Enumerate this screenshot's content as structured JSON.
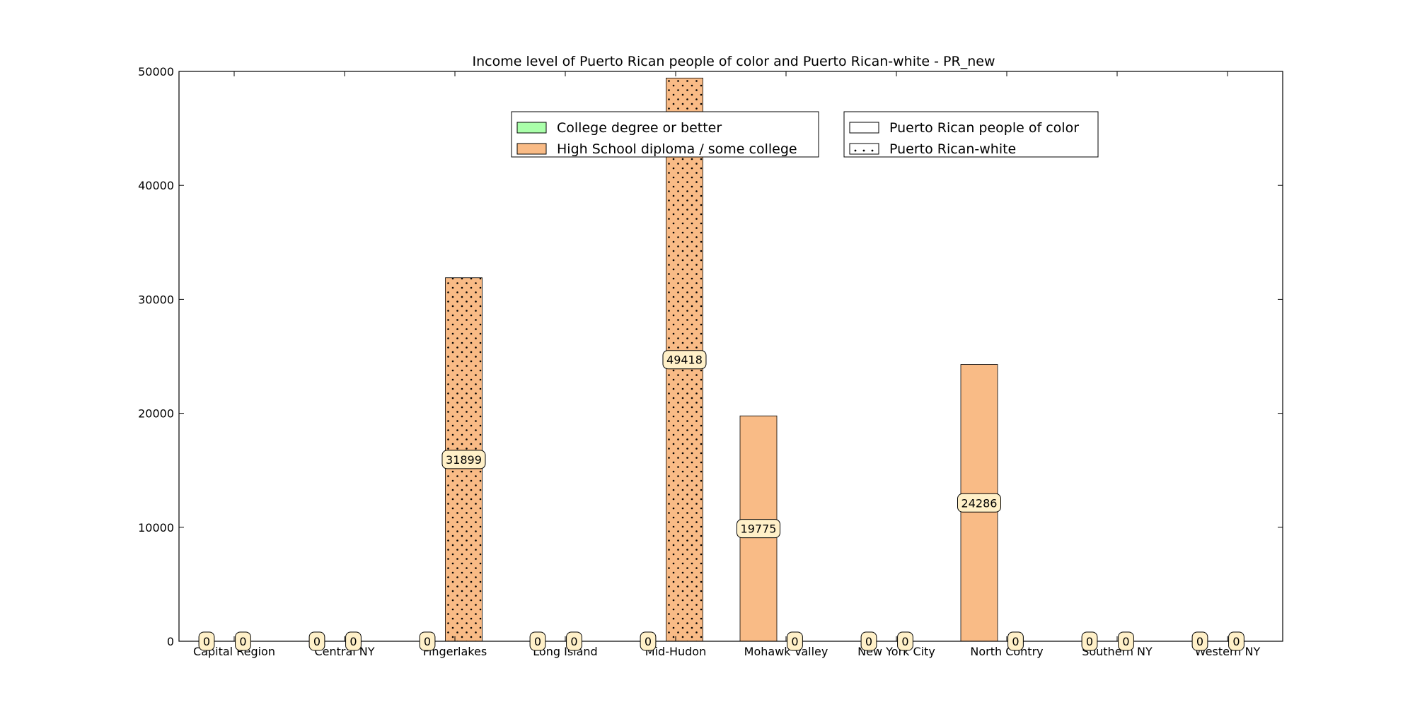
{
  "chart_data": {
    "type": "bar",
    "title": "Income level of Puerto Rican people of color and Puerto Rican-white - PR_new",
    "xlabel": "",
    "ylabel": "",
    "categories": [
      "Capital Region",
      "Central NY",
      "Fingerlakes",
      "Long Island",
      "Mid-Hudon",
      "Mohawk Valley",
      "New York City",
      "North Contry",
      "Southern NY",
      "Western NY"
    ],
    "ylim": [
      0,
      50000
    ],
    "yticks": [
      0,
      10000,
      20000,
      30000,
      40000,
      50000
    ],
    "grid": false,
    "series": [
      {
        "name": "Puerto Rican people of color",
        "hatch": "none",
        "values": [
          0,
          0,
          0,
          0,
          0,
          19775,
          0,
          24286,
          0,
          0
        ],
        "education": [
          "High School diploma / some college",
          "High School diploma / some college",
          "High School diploma / some college",
          "High School diploma / some college",
          "High School diploma / some college",
          "High School diploma / some college",
          "High School diploma / some college",
          "High School diploma / some college",
          "High School diploma / some college",
          "High School diploma / some college"
        ]
      },
      {
        "name": "Puerto Rican-white",
        "hatch": "dots",
        "values": [
          0,
          0,
          31899,
          0,
          49418,
          0,
          0,
          0,
          0,
          0
        ],
        "education": [
          "High School diploma / some college",
          "High School diploma / some college",
          "High School diploma / some college",
          "High School diploma / some college",
          "High School diploma / some college",
          "High School diploma / some college",
          "High School diploma / some college",
          "High School diploma / some college",
          "High School diploma / some college",
          "High School diploma / some college"
        ]
      }
    ],
    "education_legend": [
      {
        "label": "College degree or better",
        "color": "#aaffaa"
      },
      {
        "label": "High School diploma / some college",
        "color": "#f9bb86"
      }
    ],
    "group_legend": [
      {
        "label": "Puerto Rican people of color",
        "hatch": "none"
      },
      {
        "label": "Puerto Rican-white",
        "hatch": "dots"
      }
    ],
    "legend_placement": "upper-center",
    "data_label_style": {
      "fill": "#fff0c8",
      "border": "#000000"
    }
  }
}
